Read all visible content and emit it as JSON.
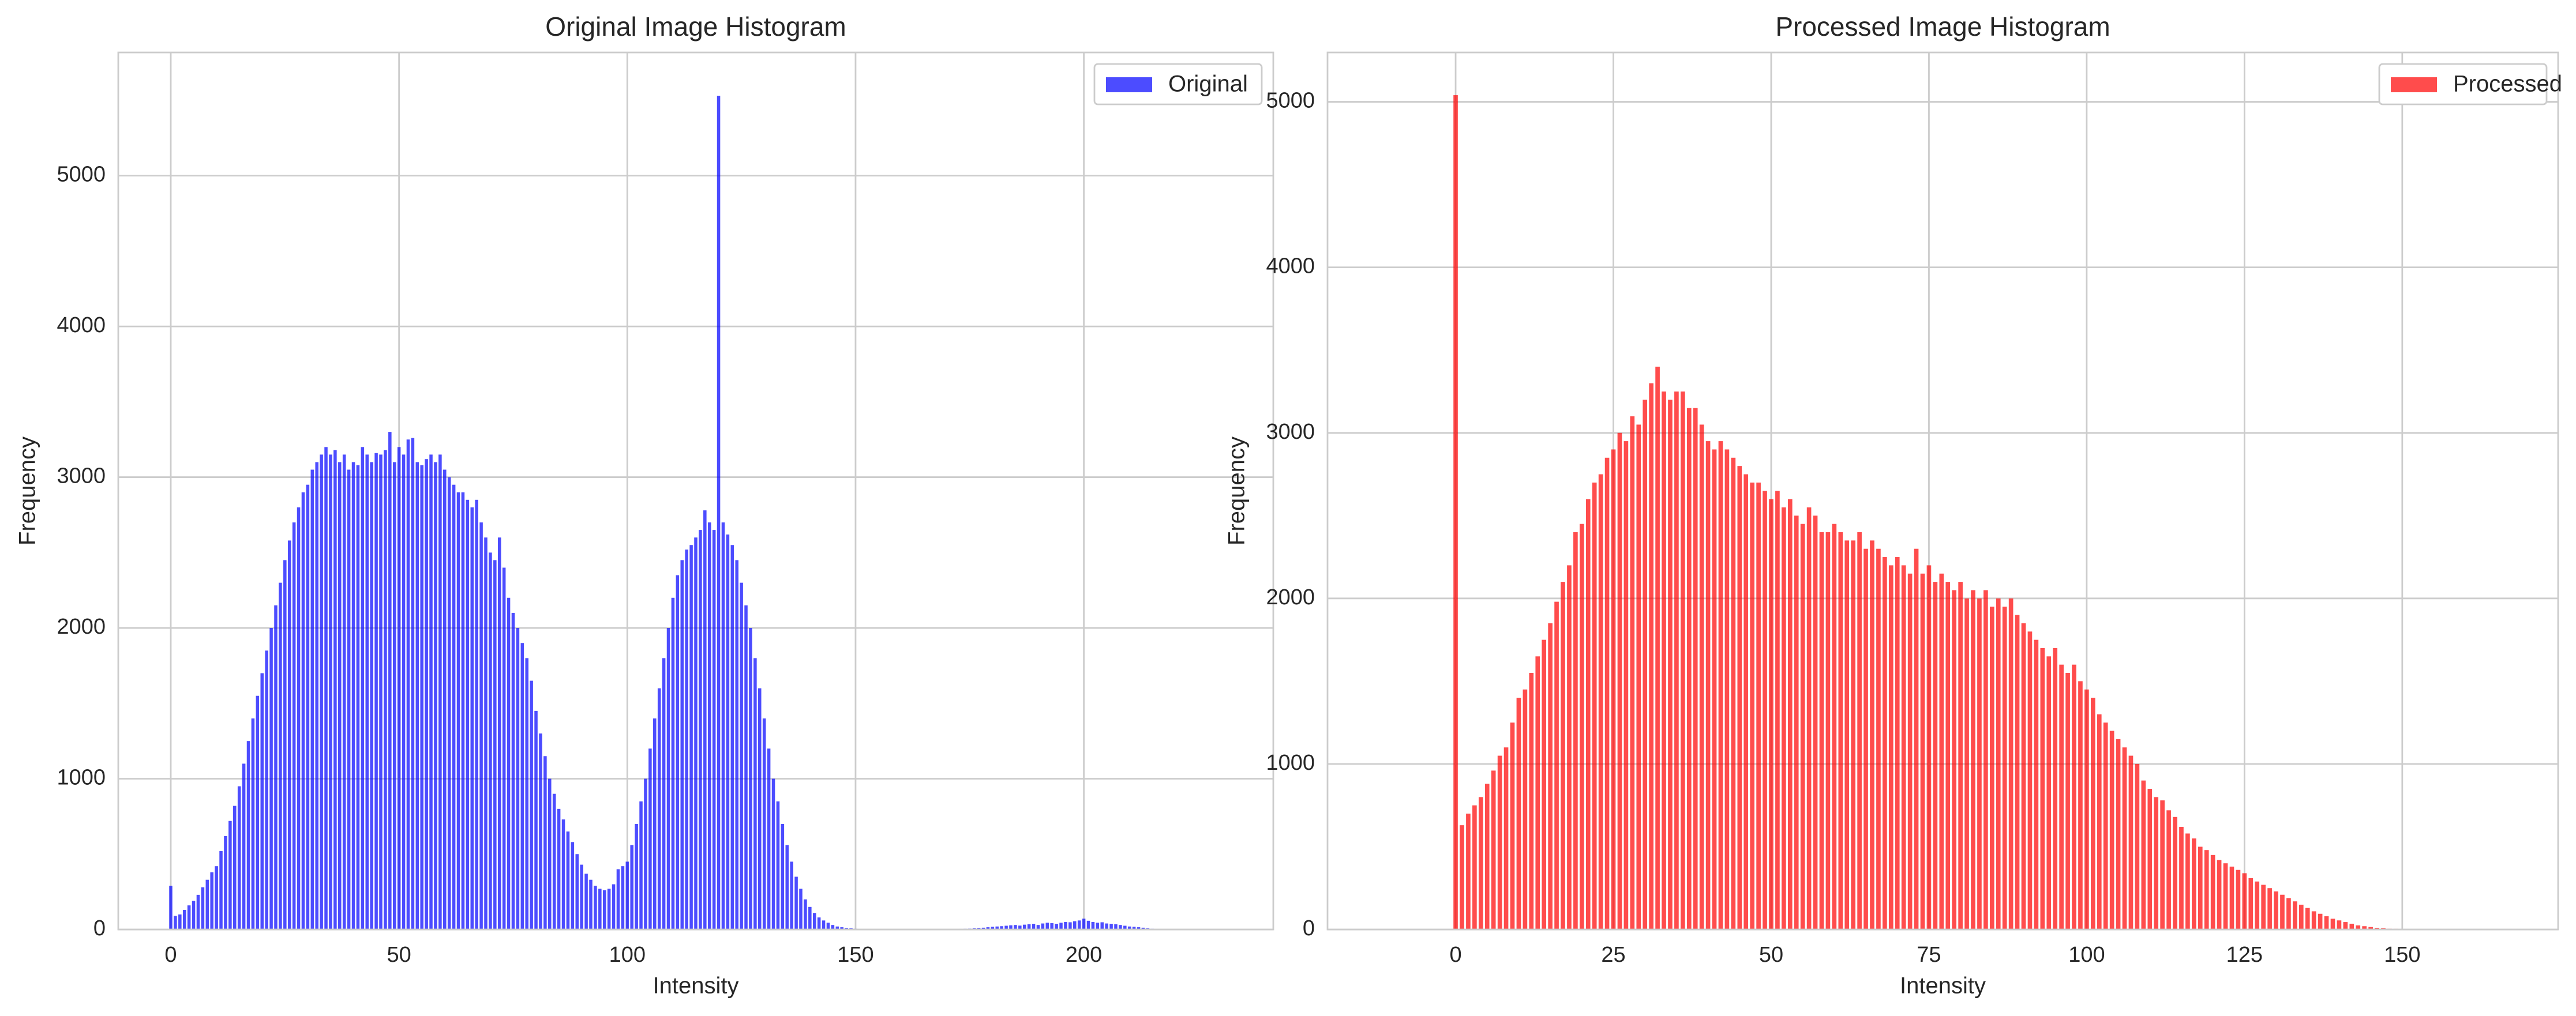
{
  "chart_data": [
    {
      "type": "bar",
      "title": "Original Image Histogram",
      "xlabel": "Intensity",
      "ylabel": "Frequency",
      "xlim": [
        -11.5,
        241.5
      ],
      "ylim": [
        0,
        5817
      ],
      "xticks": [
        0,
        50,
        100,
        150,
        200
      ],
      "yticks": [
        0,
        1000,
        2000,
        3000,
        4000,
        5000
      ],
      "grid": true,
      "legend": "upper right",
      "alpha": 0.7,
      "x": [
        0,
        1,
        2,
        3,
        4,
        5,
        6,
        7,
        8,
        9,
        10,
        11,
        12,
        13,
        14,
        15,
        16,
        17,
        18,
        19,
        20,
        21,
        22,
        23,
        24,
        25,
        26,
        27,
        28,
        29,
        30,
        31,
        32,
        33,
        34,
        35,
        36,
        37,
        38,
        39,
        40,
        41,
        42,
        43,
        44,
        45,
        46,
        47,
        48,
        49,
        50,
        51,
        52,
        53,
        54,
        55,
        56,
        57,
        58,
        59,
        60,
        61,
        62,
        63,
        64,
        65,
        66,
        67,
        68,
        69,
        70,
        71,
        72,
        73,
        74,
        75,
        76,
        77,
        78,
        79,
        80,
        81,
        82,
        83,
        84,
        85,
        86,
        87,
        88,
        89,
        90,
        91,
        92,
        93,
        94,
        95,
        96,
        97,
        98,
        99,
        100,
        101,
        102,
        103,
        104,
        105,
        106,
        107,
        108,
        109,
        110,
        111,
        112,
        113,
        114,
        115,
        116,
        117,
        118,
        119,
        120,
        121,
        122,
        123,
        124,
        125,
        126,
        127,
        128,
        129,
        130,
        131,
        132,
        133,
        134,
        135,
        136,
        137,
        138,
        139,
        140,
        141,
        142,
        143,
        144,
        145,
        146,
        147,
        148,
        149,
        150,
        151,
        152,
        153,
        154,
        155,
        156,
        157,
        158,
        159,
        160,
        161,
        162,
        163,
        164,
        165,
        166,
        167,
        168,
        169,
        170,
        171,
        172,
        173,
        174,
        175,
        176,
        177,
        178,
        179,
        180,
        181,
        182,
        183,
        184,
        185,
        186,
        187,
        188,
        189,
        190,
        191,
        192,
        193,
        194,
        195,
        196,
        197,
        198,
        199,
        200,
        201,
        202,
        203,
        204,
        205,
        206,
        207,
        208,
        209,
        210,
        211,
        212,
        213,
        214,
        215
      ],
      "series": [
        {
          "name": "Original",
          "color": "blue",
          "values": [
            290,
            90,
            100,
            130,
            160,
            190,
            230,
            280,
            330,
            380,
            420,
            520,
            620,
            720,
            820,
            950,
            1100,
            1250,
            1400,
            1550,
            1700,
            1850,
            2000,
            2150,
            2300,
            2450,
            2580,
            2700,
            2800,
            2900,
            2950,
            3050,
            3100,
            3150,
            3200,
            3150,
            3180,
            3100,
            3150,
            3050,
            3100,
            3080,
            3200,
            3150,
            3100,
            3160,
            3150,
            3180,
            3300,
            3100,
            3200,
            3150,
            3250,
            3260,
            3100,
            3080,
            3120,
            3150,
            3100,
            3150,
            3050,
            3000,
            2950,
            2900,
            2900,
            2850,
            2800,
            2850,
            2700,
            2600,
            2500,
            2450,
            2600,
            2400,
            2200,
            2100,
            2000,
            1900,
            1800,
            1650,
            1450,
            1300,
            1150,
            1000,
            900,
            800,
            730,
            650,
            580,
            500,
            430,
            370,
            330,
            290,
            270,
            260,
            270,
            300,
            400,
            420,
            450,
            560,
            700,
            850,
            1000,
            1200,
            1400,
            1600,
            1800,
            2000,
            2200,
            2350,
            2450,
            2520,
            2550,
            2600,
            2650,
            2780,
            2700,
            2650,
            5530,
            2700,
            2620,
            2550,
            2450,
            2300,
            2150,
            2000,
            1800,
            1600,
            1400,
            1200,
            1000,
            850,
            700,
            560,
            450,
            350,
            270,
            200,
            150,
            110,
            80,
            60,
            45,
            30,
            20,
            15,
            10,
            8,
            5,
            3,
            3,
            2,
            2,
            2,
            1,
            1,
            1,
            1,
            0,
            0,
            0,
            0,
            0,
            0,
            0,
            0,
            0,
            0,
            0,
            2,
            3,
            4,
            5,
            6,
            8,
            10,
            12,
            15,
            18,
            20,
            22,
            25,
            28,
            30,
            26,
            32,
            35,
            38,
            30,
            40,
            45,
            42,
            38,
            45,
            50,
            48,
            55,
            60,
            72,
            58,
            50,
            45,
            48,
            40,
            38,
            35,
            30,
            25,
            20,
            18,
            15,
            12,
            8,
            5
          ]
        }
      ]
    },
    {
      "type": "bar",
      "title": "Processed Image Histogram",
      "xlabel": "Intensity",
      "ylabel": "Frequency",
      "xlim": [
        -20.3,
        174.7
      ],
      "ylim": [
        0,
        5298
      ],
      "xticks": [
        0,
        25,
        50,
        75,
        100,
        125,
        150
      ],
      "yticks": [
        0,
        1000,
        2000,
        3000,
        4000,
        5000
      ],
      "grid": true,
      "legend": "upper right",
      "alpha": 0.7,
      "x": [
        0,
        1,
        2,
        3,
        4,
        5,
        6,
        7,
        8,
        9,
        10,
        11,
        12,
        13,
        14,
        15,
        16,
        17,
        18,
        19,
        20,
        21,
        22,
        23,
        24,
        25,
        26,
        27,
        28,
        29,
        30,
        31,
        32,
        33,
        34,
        35,
        36,
        37,
        38,
        39,
        40,
        41,
        42,
        43,
        44,
        45,
        46,
        47,
        48,
        49,
        50,
        51,
        52,
        53,
        54,
        55,
        56,
        57,
        58,
        59,
        60,
        61,
        62,
        63,
        64,
        65,
        66,
        67,
        68,
        69,
        70,
        71,
        72,
        73,
        74,
        75,
        76,
        77,
        78,
        79,
        80,
        81,
        82,
        83,
        84,
        85,
        86,
        87,
        88,
        89,
        90,
        91,
        92,
        93,
        94,
        95,
        96,
        97,
        98,
        99,
        100,
        101,
        102,
        103,
        104,
        105,
        106,
        107,
        108,
        109,
        110,
        111,
        112,
        113,
        114,
        115,
        116,
        117,
        118,
        119,
        120,
        121,
        122,
        123,
        124,
        125,
        126,
        127,
        128,
        129,
        130,
        131,
        132,
        133,
        134,
        135,
        136,
        137,
        138,
        139,
        140,
        141,
        142,
        143,
        144,
        145,
        146,
        147,
        148,
        149,
        150,
        151,
        152,
        153,
        154,
        155,
        156,
        157,
        158,
        159,
        160
      ],
      "series": [
        {
          "name": "Processed",
          "color": "red",
          "values": [
            5040,
            630,
            700,
            750,
            800,
            880,
            960,
            1050,
            1100,
            1250,
            1400,
            1450,
            1550,
            1650,
            1750,
            1850,
            1980,
            2100,
            2200,
            2400,
            2450,
            2600,
            2700,
            2750,
            2850,
            2900,
            3000,
            2950,
            3100,
            3050,
            3200,
            3300,
            3400,
            3250,
            3200,
            3250,
            3250,
            3150,
            3150,
            3050,
            2950,
            2900,
            2950,
            2900,
            2850,
            2800,
            2750,
            2700,
            2700,
            2650,
            2600,
            2650,
            2550,
            2600,
            2500,
            2450,
            2550,
            2500,
            2400,
            2400,
            2450,
            2400,
            2350,
            2350,
            2400,
            2300,
            2350,
            2300,
            2250,
            2200,
            2250,
            2200,
            2150,
            2300,
            2150,
            2200,
            2100,
            2150,
            2100,
            2050,
            2100,
            2000,
            2050,
            2000,
            2050,
            1950,
            2000,
            1950,
            2000,
            1900,
            1850,
            1800,
            1750,
            1700,
            1650,
            1700,
            1600,
            1550,
            1600,
            1500,
            1450,
            1400,
            1300,
            1250,
            1200,
            1150,
            1100,
            1050,
            1000,
            900,
            850,
            800,
            780,
            720,
            680,
            620,
            580,
            550,
            500,
            480,
            450,
            420,
            400,
            380,
            360,
            340,
            310,
            290,
            270,
            250,
            230,
            210,
            190,
            170,
            150,
            130,
            110,
            95,
            80,
            65,
            55,
            45,
            35,
            25,
            20,
            15,
            10,
            8,
            5,
            4,
            3,
            2,
            2,
            1,
            1,
            1,
            1,
            0,
            0,
            0,
            1
          ]
        }
      ]
    }
  ]
}
